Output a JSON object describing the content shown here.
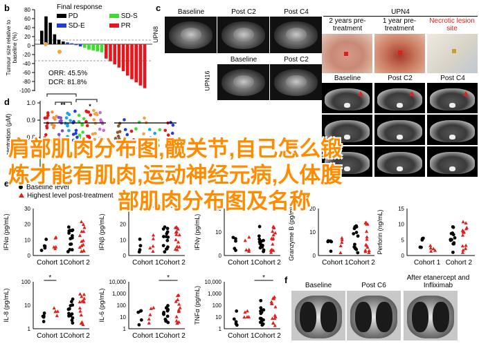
{
  "panels": {
    "b": {
      "label": "b",
      "ylabel": "Tumour size relative to baseline (%)",
      "yticks": [
        "80",
        "60",
        "40",
        "20",
        "0",
        "-20",
        "-40",
        "-60",
        "-80",
        "-100"
      ],
      "legend_title": "Final response",
      "legend": [
        {
          "name": "PD",
          "color": "#000000"
        },
        {
          "name": "SD-S",
          "color": "#3ddc2f"
        },
        {
          "name": "SD-E",
          "color": "#1f3fd0"
        },
        {
          "name": "PR",
          "color": "#e8161b"
        }
      ],
      "orr": "ORR: 45.5%",
      "dcr": "DCR: 81.8%"
    },
    "c": {
      "label": "c",
      "upn8_label": "UPN8",
      "upn16_label": "UPN16",
      "upn8_headers": [
        "Baseline",
        "Post C2",
        "Post C4"
      ],
      "upn16_headers": [
        "Baseline",
        "Post C2"
      ]
    },
    "upn4": {
      "title": "UPN4",
      "photo_headers": [
        "2 years pre-treatment",
        "1 year pre-treatment",
        "Necrotic lesion site"
      ],
      "ct_headers": [
        "Baseline",
        "Post C2",
        "Post C4"
      ]
    },
    "d": {
      "label": "d",
      "ylabel": "centration (μM)",
      "yticks": [
        "1.0",
        "0.9",
        "0.8"
      ],
      "sig": [
        "**",
        "*"
      ]
    },
    "e": {
      "label": "e",
      "legend": [
        "Baseline level",
        "Highest level post-treatment"
      ],
      "xcats": [
        "Cohort 1",
        "Cohort 2"
      ],
      "plots": [
        {
          "ylabel": "IFNα (pg/mL)",
          "yticks": [
            "30",
            "20",
            "10",
            "0"
          ],
          "sig": ""
        },
        {
          "ylabel": "IFNβ (pg/mL)",
          "yticks": [
            "30",
            "20",
            "10",
            "0"
          ],
          "sig": "*"
        },
        {
          "ylabel": "IFNγ (pg/mL)",
          "yticks": [
            "20",
            "10",
            "0"
          ],
          "sig": ""
        },
        {
          "ylabel": "Granzyme B (pg/mL)",
          "yticks": [
            "20",
            "10",
            "0"
          ],
          "sig": ""
        },
        {
          "ylabel": "Perforin (ng/mL)",
          "yticks": [
            "15",
            "10",
            "5",
            "0"
          ],
          "sig": ""
        },
        {
          "ylabel": "IL-8 (pg/mL)",
          "yticks": [
            "100",
            "10",
            "1"
          ],
          "sig": "*"
        },
        {
          "ylabel": "IL-6 (pg/mL)",
          "yticks": [
            "10,000",
            "1,000",
            "100",
            "10",
            "1"
          ],
          "sig": "*"
        },
        {
          "ylabel": "TNFα (pg/mL)",
          "yticks": [
            "10,000",
            "1,000",
            "100",
            "10",
            "1"
          ],
          "sig": "*"
        }
      ]
    },
    "f": {
      "label": "f",
      "headers": [
        "Baseline",
        "Post C6",
        "After etanercept and Infliximab"
      ]
    }
  },
  "watermark": {
    "line1": "肩部肌肉分布图,髋关节,自己怎么锻",
    "line2": "炼才能有肌肉,运动神经元病,人体腹",
    "line3": "部肌肉分布图及名称"
  }
}
